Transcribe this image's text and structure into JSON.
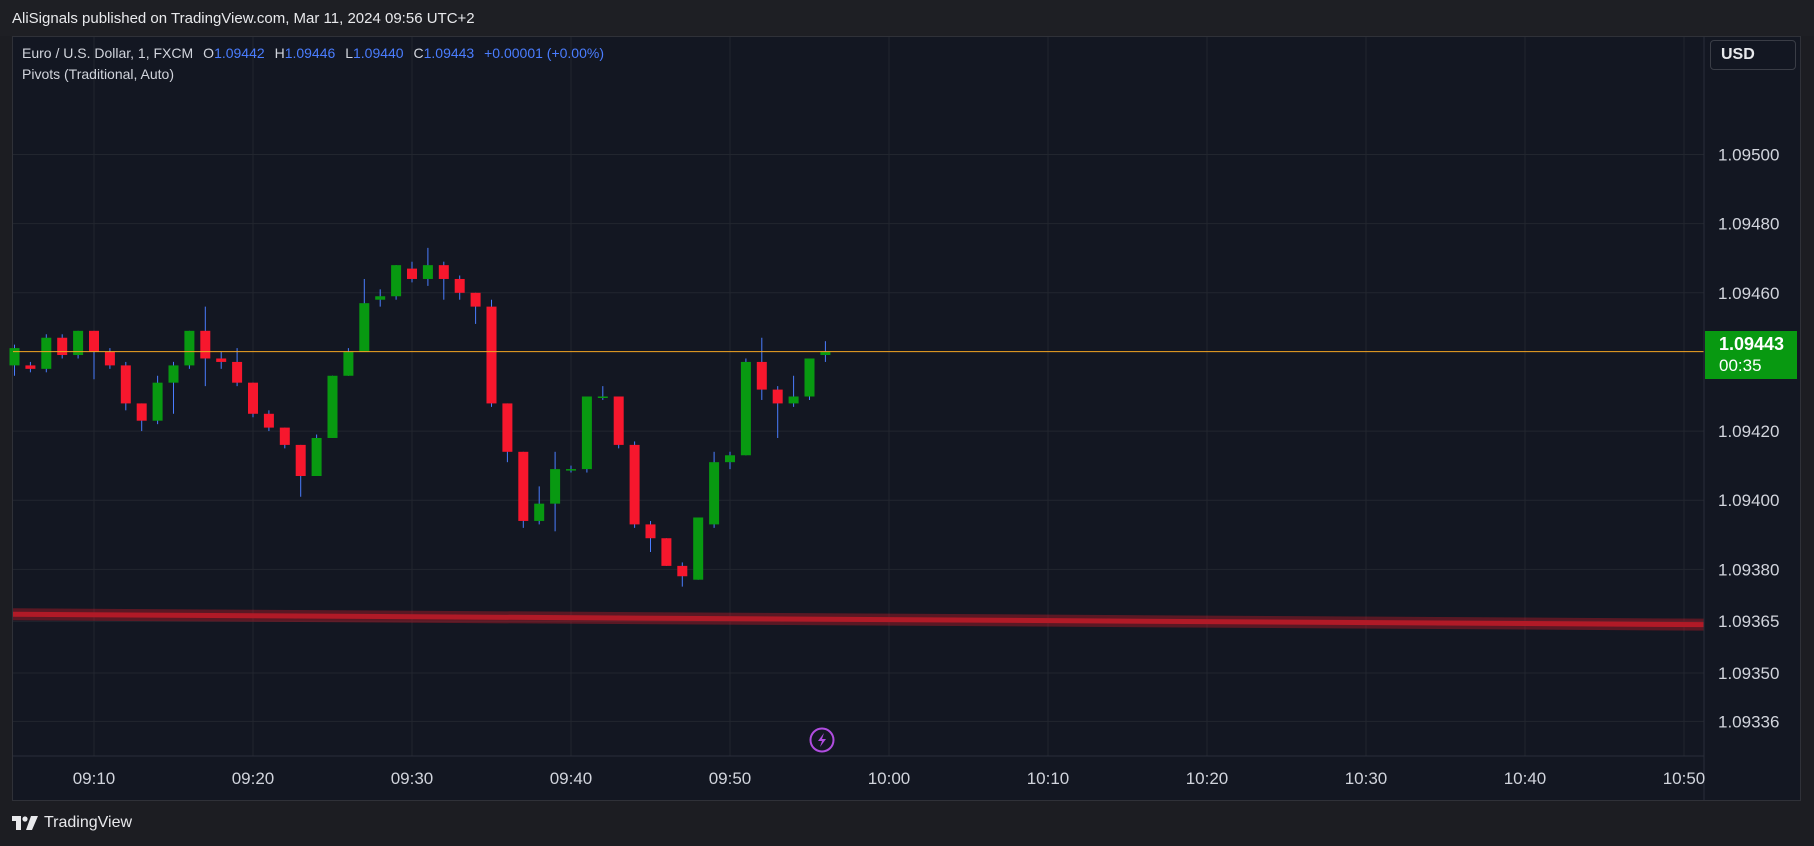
{
  "header": {
    "published": "AliSignals published on TradingView.com, Mar 11, 2024 09:56 UTC+2"
  },
  "legend": {
    "symbol": "Euro / U.S. Dollar, 1, FXCM",
    "o_label": "O",
    "o_value": "1.09442",
    "h_label": "H",
    "h_value": "1.09446",
    "l_label": "L",
    "l_value": "1.09440",
    "c_label": "C",
    "c_value": "1.09443",
    "change": "+0.00001 (+0.00%)",
    "indicator": "Pivots (Traditional, Auto)"
  },
  "currency_button": "USD",
  "last_price": {
    "price": "1.09443",
    "countdown": "00:35"
  },
  "footer": {
    "brand": "TradingView"
  },
  "colors": {
    "background": "#131722",
    "up": "#089911",
    "down": "#f7172d",
    "wick": "#4a7dff",
    "last_price_line": "#f5a623",
    "pivot_line": "#b11a27",
    "grid": "#22262f",
    "axis_text": "#d1d4dc",
    "lightning": "#b04de0"
  },
  "chart_data": {
    "type": "candlestick",
    "title": "",
    "xlabel": "",
    "ylabel": "",
    "ylim": [
      1.09326,
      1.09534
    ],
    "x_ticks": [
      "09:10",
      "09:20",
      "09:30",
      "09:40",
      "09:50",
      "10:00",
      "10:10",
      "10:20",
      "10:30",
      "10:40",
      "10:50"
    ],
    "y_ticks": [
      "1.09500",
      "1.09480",
      "1.09460",
      "1.09420",
      "1.09400",
      "1.09380",
      "1.09365",
      "1.09350",
      "1.09336"
    ],
    "grid": true,
    "start_time": "09:05",
    "candles": [
      {
        "t": "09:05",
        "o": 1.09439,
        "h": 1.09445,
        "l": 1.09436,
        "c": 1.09444
      },
      {
        "t": "09:06",
        "o": 1.09439,
        "h": 1.0944,
        "l": 1.09437,
        "c": 1.09438
      },
      {
        "t": "09:07",
        "o": 1.09438,
        "h": 1.09448,
        "l": 1.09437,
        "c": 1.09447
      },
      {
        "t": "09:08",
        "o": 1.09447,
        "h": 1.09448,
        "l": 1.09441,
        "c": 1.09442
      },
      {
        "t": "09:09",
        "o": 1.09442,
        "h": 1.09449,
        "l": 1.09441,
        "c": 1.09449
      },
      {
        "t": "09:10",
        "o": 1.09449,
        "h": 1.09449,
        "l": 1.09435,
        "c": 1.09443
      },
      {
        "t": "09:11",
        "o": 1.09443,
        "h": 1.09444,
        "l": 1.09438,
        "c": 1.09439
      },
      {
        "t": "09:12",
        "o": 1.09439,
        "h": 1.0944,
        "l": 1.09426,
        "c": 1.09428
      },
      {
        "t": "09:13",
        "o": 1.09428,
        "h": 1.09428,
        "l": 1.0942,
        "c": 1.09423
      },
      {
        "t": "09:14",
        "o": 1.09423,
        "h": 1.09436,
        "l": 1.09422,
        "c": 1.09434
      },
      {
        "t": "09:15",
        "o": 1.09434,
        "h": 1.0944,
        "l": 1.09425,
        "c": 1.09439
      },
      {
        "t": "09:16",
        "o": 1.09439,
        "h": 1.09449,
        "l": 1.09438,
        "c": 1.09449
      },
      {
        "t": "09:17",
        "o": 1.09449,
        "h": 1.09456,
        "l": 1.09433,
        "c": 1.09441
      },
      {
        "t": "09:18",
        "o": 1.09441,
        "h": 1.09443,
        "l": 1.09438,
        "c": 1.0944
      },
      {
        "t": "09:19",
        "o": 1.0944,
        "h": 1.09444,
        "l": 1.09433,
        "c": 1.09434
      },
      {
        "t": "09:20",
        "o": 1.09434,
        "h": 1.09434,
        "l": 1.09424,
        "c": 1.09425
      },
      {
        "t": "09:21",
        "o": 1.09425,
        "h": 1.09426,
        "l": 1.0942,
        "c": 1.09421
      },
      {
        "t": "09:22",
        "o": 1.09421,
        "h": 1.09421,
        "l": 1.09415,
        "c": 1.09416
      },
      {
        "t": "09:23",
        "o": 1.09416,
        "h": 1.09416,
        "l": 1.09401,
        "c": 1.09407
      },
      {
        "t": "09:24",
        "o": 1.09407,
        "h": 1.09419,
        "l": 1.09407,
        "c": 1.09418
      },
      {
        "t": "09:25",
        "o": 1.09418,
        "h": 1.09436,
        "l": 1.09418,
        "c": 1.09436
      },
      {
        "t": "09:26",
        "o": 1.09436,
        "h": 1.09444,
        "l": 1.09436,
        "c": 1.09443
      },
      {
        "t": "09:27",
        "o": 1.09443,
        "h": 1.09464,
        "l": 1.09443,
        "c": 1.09457
      },
      {
        "t": "09:28",
        "o": 1.09458,
        "h": 1.09461,
        "l": 1.09456,
        "c": 1.09459
      },
      {
        "t": "09:29",
        "o": 1.09459,
        "h": 1.09468,
        "l": 1.09458,
        "c": 1.09468
      },
      {
        "t": "09:30",
        "o": 1.09467,
        "h": 1.09469,
        "l": 1.09463,
        "c": 1.09464
      },
      {
        "t": "09:31",
        "o": 1.09464,
        "h": 1.09473,
        "l": 1.09462,
        "c": 1.09468
      },
      {
        "t": "09:32",
        "o": 1.09468,
        "h": 1.09469,
        "l": 1.09458,
        "c": 1.09464
      },
      {
        "t": "09:33",
        "o": 1.09464,
        "h": 1.09465,
        "l": 1.09458,
        "c": 1.0946
      },
      {
        "t": "09:34",
        "o": 1.0946,
        "h": 1.0946,
        "l": 1.09451,
        "c": 1.09456
      },
      {
        "t": "09:35",
        "o": 1.09456,
        "h": 1.09458,
        "l": 1.09427,
        "c": 1.09428
      },
      {
        "t": "09:36",
        "o": 1.09428,
        "h": 1.09428,
        "l": 1.09411,
        "c": 1.09414
      },
      {
        "t": "09:37",
        "o": 1.09414,
        "h": 1.09414,
        "l": 1.09392,
        "c": 1.09394
      },
      {
        "t": "09:38",
        "o": 1.09394,
        "h": 1.09404,
        "l": 1.09393,
        "c": 1.09399
      },
      {
        "t": "09:39",
        "o": 1.09399,
        "h": 1.09414,
        "l": 1.09391,
        "c": 1.09409
      },
      {
        "t": "09:40",
        "o": 1.09409,
        "h": 1.0941,
        "l": 1.09408,
        "c": 1.09409
      },
      {
        "t": "09:41",
        "o": 1.09409,
        "h": 1.0943,
        "l": 1.09408,
        "c": 1.0943
      },
      {
        "t": "09:42",
        "o": 1.0943,
        "h": 1.09433,
        "l": 1.09429,
        "c": 1.0943
      },
      {
        "t": "09:43",
        "o": 1.0943,
        "h": 1.0943,
        "l": 1.09415,
        "c": 1.09416
      },
      {
        "t": "09:44",
        "o": 1.09416,
        "h": 1.09417,
        "l": 1.09392,
        "c": 1.09393
      },
      {
        "t": "09:45",
        "o": 1.09393,
        "h": 1.09394,
        "l": 1.09385,
        "c": 1.09389
      },
      {
        "t": "09:46",
        "o": 1.09389,
        "h": 1.09389,
        "l": 1.09381,
        "c": 1.09381
      },
      {
        "t": "09:47",
        "o": 1.09381,
        "h": 1.09382,
        "l": 1.09375,
        "c": 1.09378
      },
      {
        "t": "09:48",
        "o": 1.09377,
        "h": 1.09395,
        "l": 1.09377,
        "c": 1.09395
      },
      {
        "t": "09:49",
        "o": 1.09393,
        "h": 1.09414,
        "l": 1.09392,
        "c": 1.09411
      },
      {
        "t": "09:50",
        "o": 1.09411,
        "h": 1.09414,
        "l": 1.09409,
        "c": 1.09413
      },
      {
        "t": "09:51",
        "o": 1.09413,
        "h": 1.09441,
        "l": 1.09413,
        "c": 1.0944
      },
      {
        "t": "09:52",
        "o": 1.0944,
        "h": 1.09447,
        "l": 1.09429,
        "c": 1.09432
      },
      {
        "t": "09:53",
        "o": 1.09432,
        "h": 1.09433,
        "l": 1.09418,
        "c": 1.09428
      },
      {
        "t": "09:54",
        "o": 1.09428,
        "h": 1.09436,
        "l": 1.09427,
        "c": 1.0943
      },
      {
        "t": "09:55",
        "o": 1.0943,
        "h": 1.09441,
        "l": 1.09429,
        "c": 1.09441
      },
      {
        "t": "09:56",
        "o": 1.09442,
        "h": 1.09446,
        "l": 1.0944,
        "c": 1.09443
      }
    ],
    "last_price_line": 1.09443,
    "pivot_line": {
      "start": 1.09367,
      "end": 1.09364
    }
  }
}
